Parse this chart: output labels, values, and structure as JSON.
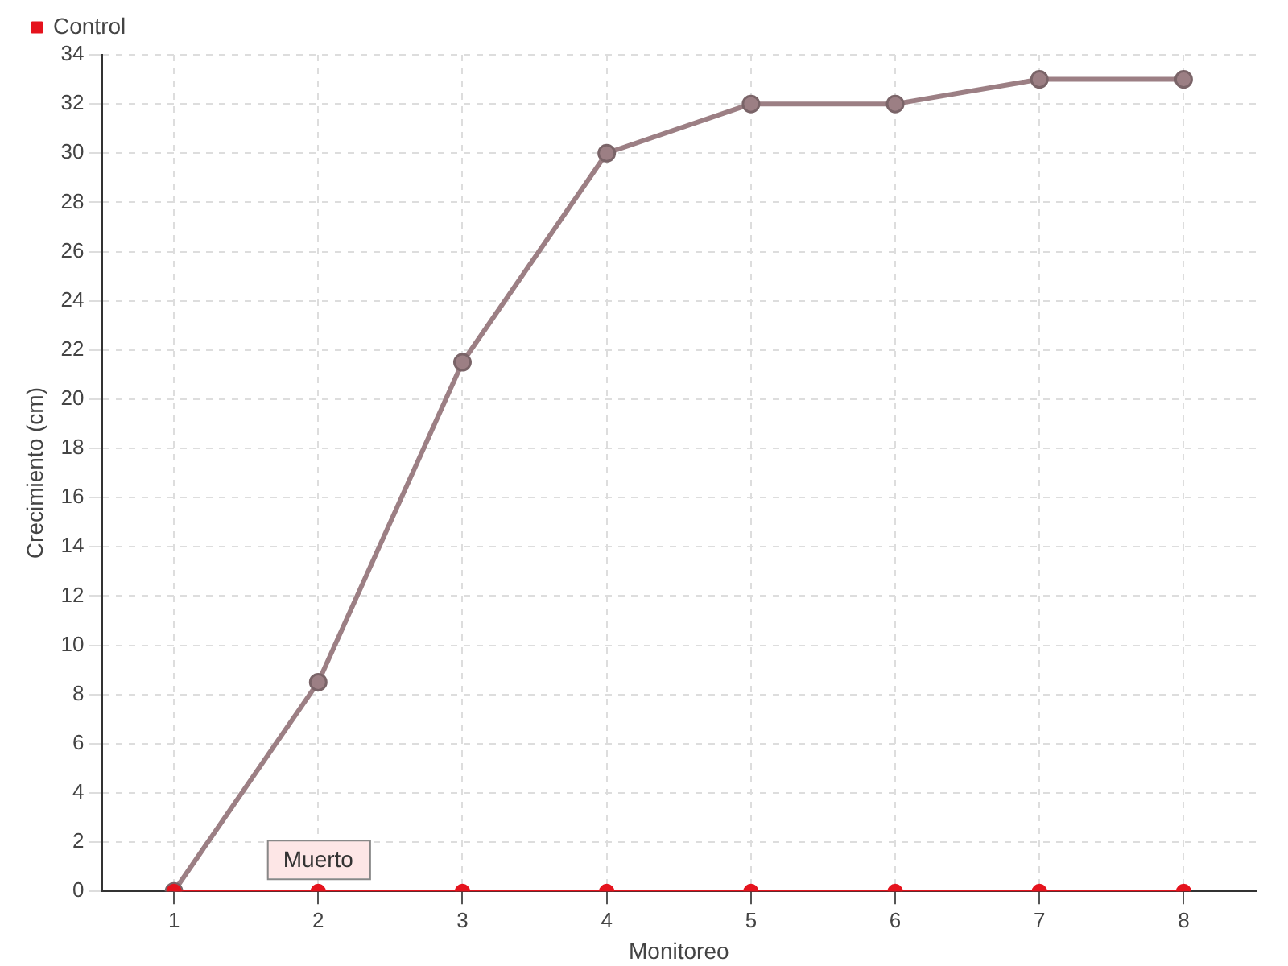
{
  "chart_data": {
    "type": "line",
    "xlabel": "Monitoreo",
    "ylabel": "Crecimiento (cm)",
    "categories": [
      "1",
      "2",
      "3",
      "4",
      "5",
      "6",
      "7",
      "8"
    ],
    "series": [
      {
        "color": "#9c7f84",
        "values": [
          0,
          8.5,
          21.5,
          30,
          32,
          32,
          33,
          33
        ]
      },
      {
        "name": "Control",
        "color": "#e5131d",
        "values": [
          0,
          0,
          0,
          0,
          0,
          0,
          0,
          0
        ]
      }
    ],
    "ylim": [
      0,
      34
    ],
    "yticks": [
      0,
      2,
      4,
      6,
      8,
      10,
      12,
      14,
      16,
      18,
      20,
      22,
      24,
      26,
      28,
      30,
      32,
      34
    ],
    "grid": true,
    "legend": "top left",
    "marker": "circle",
    "line_style": "solid",
    "annotations": [
      {
        "text": "Muerto",
        "x": "2",
        "y": 0
      }
    ]
  }
}
